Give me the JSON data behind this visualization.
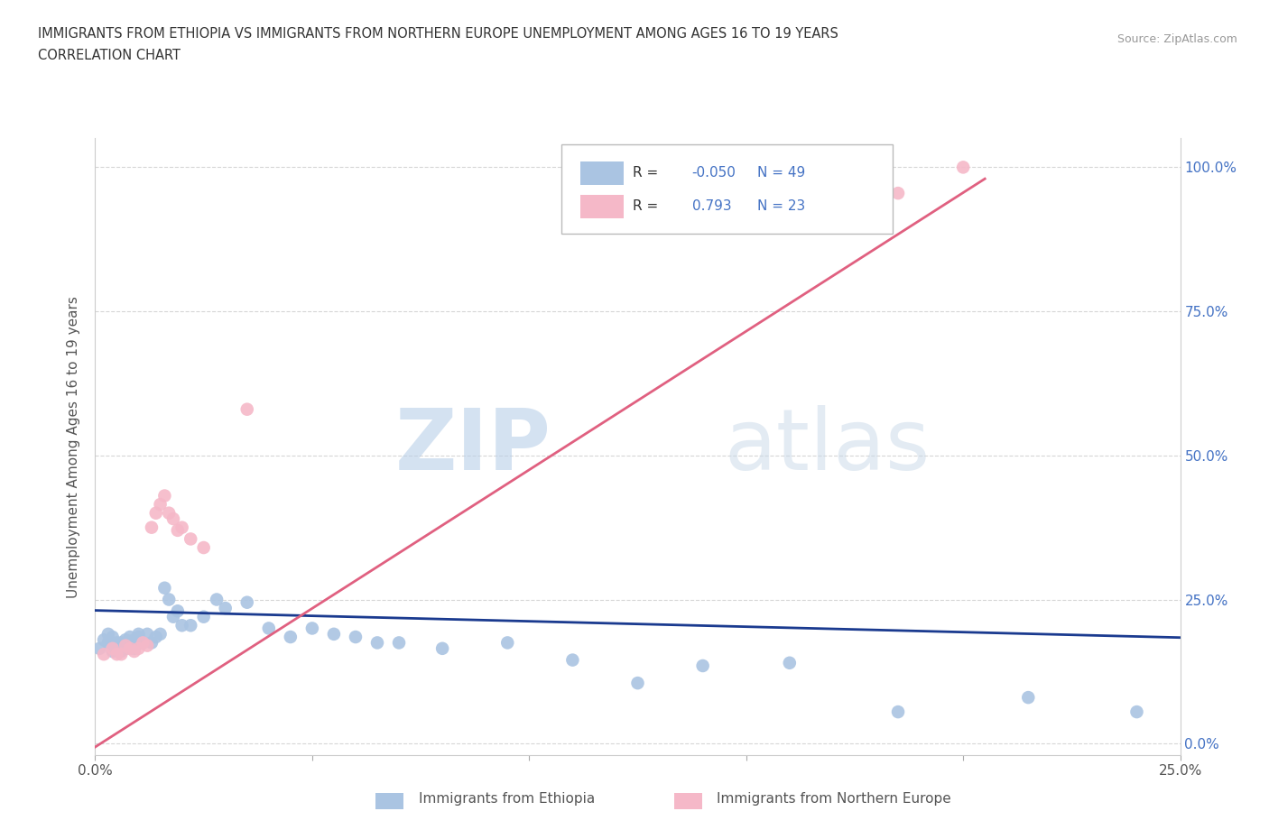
{
  "title_line1": "IMMIGRANTS FROM ETHIOPIA VS IMMIGRANTS FROM NORTHERN EUROPE UNEMPLOYMENT AMONG AGES 16 TO 19 YEARS",
  "title_line2": "CORRELATION CHART",
  "source": "Source: ZipAtlas.com",
  "ylabel": "Unemployment Among Ages 16 to 19 years",
  "xlim": [
    0.0,
    0.25
  ],
  "ylim": [
    -0.02,
    1.05
  ],
  "xticks": [
    0.0,
    0.05,
    0.1,
    0.15,
    0.2,
    0.25
  ],
  "yticks_right": [
    0.0,
    0.25,
    0.5,
    0.75,
    1.0
  ],
  "ytick_labels_right": [
    "0.0%",
    "25.0%",
    "50.0%",
    "75.0%",
    "100.0%"
  ],
  "xtick_labels": [
    "0.0%",
    "",
    "",
    "",
    "",
    "25.0%"
  ],
  "watermark_zip": "ZIP",
  "watermark_atlas": "atlas",
  "legend_R1": "-0.050",
  "legend_N1": "49",
  "legend_R2": "0.793",
  "legend_N2": "23",
  "color_ethiopia": "#aac4e2",
  "color_ethiopia_line": "#1a3a8f",
  "color_northern_europe": "#f5b8c8",
  "color_northern_europe_line": "#e06080",
  "legend_label1": "Immigrants from Ethiopia",
  "legend_label2": "Immigrants from Northern Europe",
  "ethiopia_x": [
    0.001,
    0.002,
    0.003,
    0.003,
    0.004,
    0.004,
    0.005,
    0.005,
    0.006,
    0.006,
    0.007,
    0.007,
    0.008,
    0.008,
    0.009,
    0.009,
    0.01,
    0.01,
    0.011,
    0.012,
    0.013,
    0.014,
    0.015,
    0.016,
    0.017,
    0.018,
    0.019,
    0.02,
    0.022,
    0.025,
    0.028,
    0.03,
    0.035,
    0.04,
    0.045,
    0.05,
    0.055,
    0.06,
    0.065,
    0.07,
    0.08,
    0.095,
    0.11,
    0.125,
    0.14,
    0.16,
    0.185,
    0.215,
    0.24
  ],
  "ethiopia_y": [
    0.165,
    0.18,
    0.175,
    0.19,
    0.16,
    0.185,
    0.165,
    0.175,
    0.16,
    0.175,
    0.165,
    0.18,
    0.17,
    0.185,
    0.165,
    0.18,
    0.185,
    0.19,
    0.175,
    0.19,
    0.175,
    0.185,
    0.19,
    0.27,
    0.25,
    0.22,
    0.23,
    0.205,
    0.205,
    0.22,
    0.25,
    0.235,
    0.245,
    0.2,
    0.185,
    0.2,
    0.19,
    0.185,
    0.175,
    0.175,
    0.165,
    0.175,
    0.145,
    0.105,
    0.135,
    0.14,
    0.055,
    0.08,
    0.055
  ],
  "northern_europe_x": [
    0.002,
    0.004,
    0.005,
    0.006,
    0.007,
    0.008,
    0.009,
    0.01,
    0.011,
    0.012,
    0.013,
    0.014,
    0.015,
    0.016,
    0.017,
    0.018,
    0.019,
    0.02,
    0.022,
    0.025,
    0.035,
    0.185,
    0.2
  ],
  "northern_europe_y": [
    0.155,
    0.165,
    0.155,
    0.155,
    0.17,
    0.165,
    0.16,
    0.165,
    0.175,
    0.17,
    0.375,
    0.4,
    0.415,
    0.43,
    0.4,
    0.39,
    0.37,
    0.375,
    0.355,
    0.34,
    0.58,
    0.955,
    1.0
  ],
  "ethiopia_trend_x": [
    -0.005,
    0.255
  ],
  "ethiopia_trend_y": [
    0.232,
    0.183
  ],
  "ne_trend_x": [
    -0.005,
    0.205
  ],
  "ne_trend_y": [
    -0.03,
    0.98
  ]
}
